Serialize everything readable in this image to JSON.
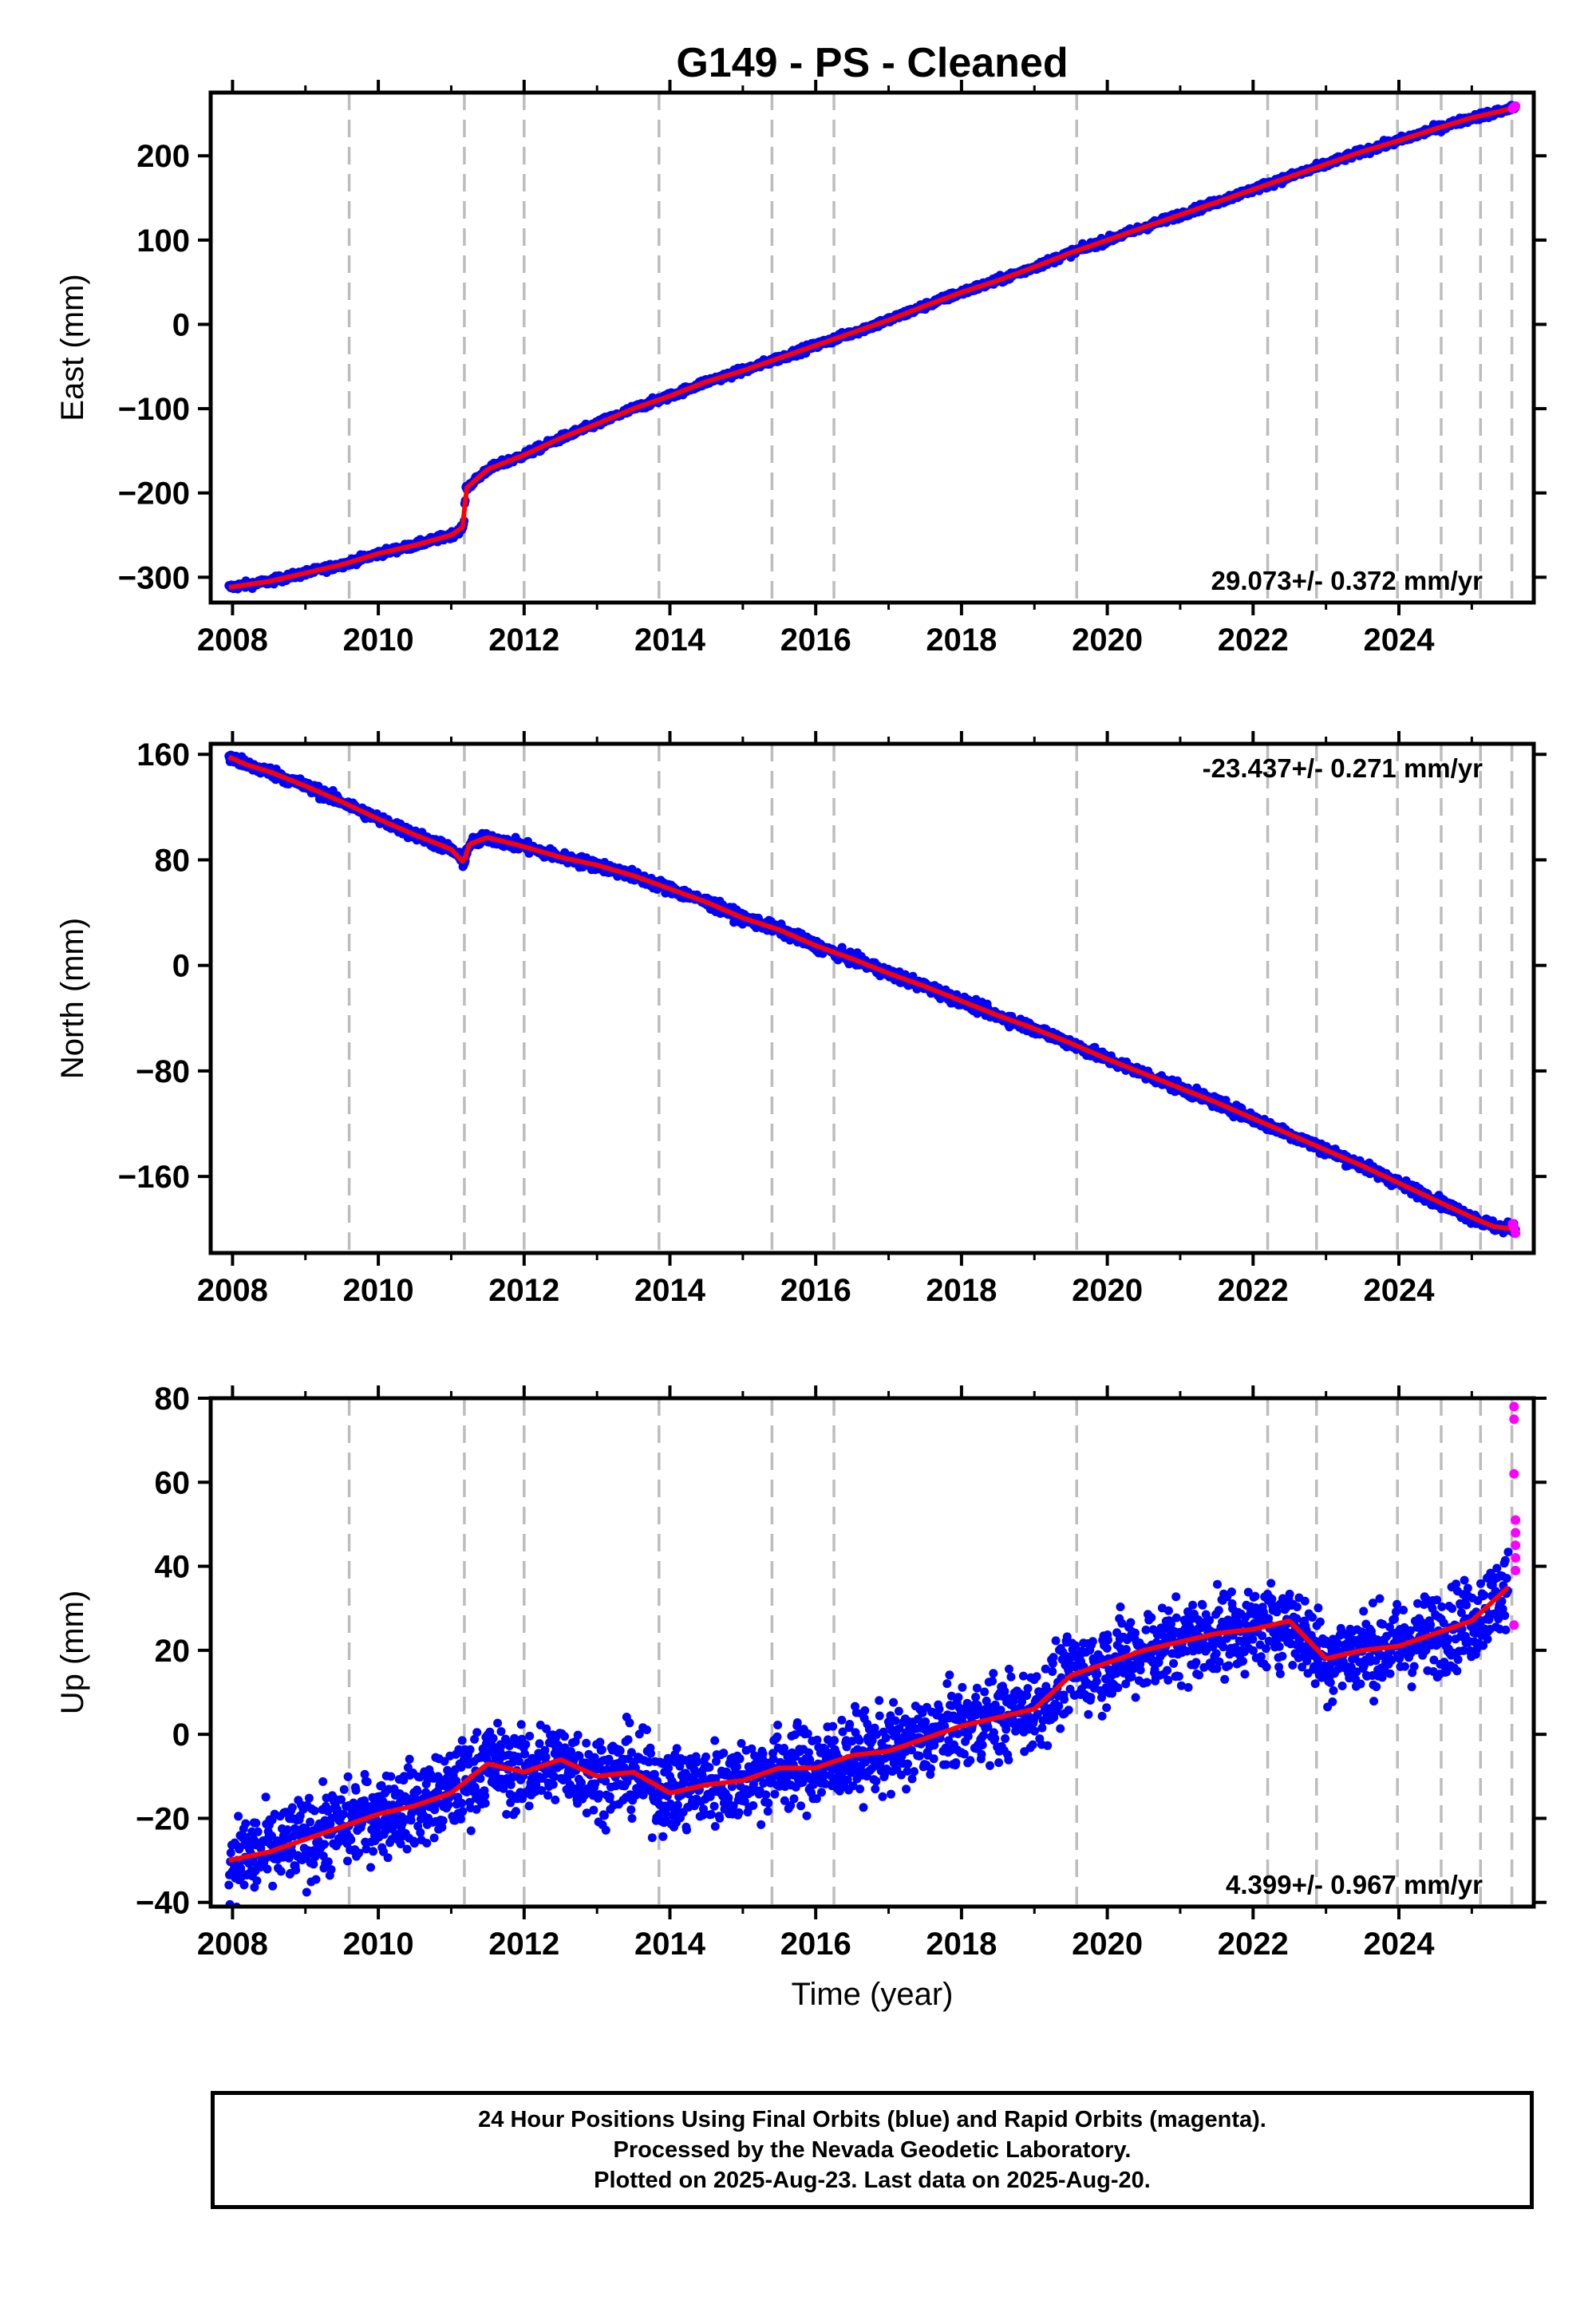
{
  "title": "G149  - PS - Cleaned",
  "colors": {
    "final_points": "#0000ff",
    "rapid_points": "#ff00ff",
    "model_line": "#ff0000",
    "event_lines": "#bdbdbd",
    "frame": "#000000"
  },
  "x_axis": {
    "label": "Time (year)",
    "range": [
      2007.7,
      2025.85
    ],
    "tick_labels": [
      "2008",
      "2010",
      "2012",
      "2014",
      "2016",
      "2018",
      "2020",
      "2022",
      "2024"
    ],
    "event_lines": [
      2009.6,
      2011.18,
      2012.0,
      2013.85,
      2015.4,
      2016.25,
      2019.58,
      2022.2,
      2022.87,
      2023.98,
      2024.58,
      2025.12,
      2025.55
    ]
  },
  "chart_data": [
    {
      "type": "scatter",
      "name": "east",
      "ylabel": "East (mm)",
      "ylim": [
        -330,
        275
      ],
      "yticks": [
        -300,
        -200,
        -100,
        0,
        100,
        200
      ],
      "y_tick_labels": [
        "−300",
        "−200",
        "−100",
        "0",
        "100",
        "200"
      ],
      "rate_label": "29.073+/- 0.372 mm/yr",
      "rate_position": "bottom-right",
      "grid": false,
      "series": [
        {
          "kind": "final_orbits_points_and_model",
          "x": [
            2007.95,
            2008.5,
            2009.0,
            2009.5,
            2010.0,
            2010.5,
            2011.0,
            2011.17,
            2011.2,
            2011.5,
            2012.0,
            2012.5,
            2013.0,
            2013.5,
            2014.0,
            2014.5,
            2015.0,
            2015.5,
            2016.0,
            2016.5,
            2017.0,
            2017.5,
            2018.0,
            2018.5,
            2019.0,
            2019.5,
            2020.0,
            2020.5,
            2021.0,
            2021.5,
            2022.0,
            2022.5,
            2023.0,
            2023.5,
            2024.0,
            2024.5,
            2025.0,
            2025.5,
            2025.6
          ],
          "y": [
            -312,
            -305,
            -295,
            -285,
            -272,
            -262,
            -250,
            -240,
            -195,
            -172,
            -155,
            -135,
            -118,
            -100,
            -85,
            -68,
            -55,
            -40,
            -25,
            -10,
            5,
            22,
            38,
            52,
            68,
            85,
            100,
            115,
            130,
            145,
            160,
            175,
            190,
            205,
            218,
            232,
            245,
            255,
            258
          ],
          "noise": 3
        }
      ],
      "rapid_points": [
        [
          2025.56,
          256
        ],
        [
          2025.58,
          258
        ],
        [
          2025.6,
          259
        ]
      ]
    },
    {
      "type": "scatter",
      "name": "north",
      "ylabel": "North (mm)",
      "ylim": [
        -218,
        168
      ],
      "yticks": [
        -160,
        -80,
        0,
        80,
        160
      ],
      "y_tick_labels": [
        "−160",
        "−80",
        "0",
        "80",
        "160"
      ],
      "rate_label": "-23.437+/- 0.271 mm/yr",
      "rate_position": "top-right",
      "grid": false,
      "series": [
        {
          "kind": "final_orbits_points_and_model",
          "x": [
            2007.95,
            2008.2,
            2008.5,
            2009.0,
            2009.5,
            2010.0,
            2010.5,
            2011.0,
            2011.17,
            2011.25,
            2011.5,
            2012.0,
            2012.5,
            2013.0,
            2013.5,
            2014.0,
            2014.5,
            2015.0,
            2015.5,
            2016.0,
            2016.5,
            2017.0,
            2017.5,
            2018.0,
            2018.5,
            2019.0,
            2019.5,
            2020.0,
            2020.5,
            2021.0,
            2021.5,
            2022.0,
            2022.5,
            2023.0,
            2023.5,
            2024.0,
            2024.5,
            2025.0,
            2025.3,
            2025.6
          ],
          "y": [
            158,
            152,
            147,
            136,
            124,
            111,
            99,
            88,
            78,
            92,
            97,
            90,
            82,
            76,
            68,
            58,
            48,
            36,
            27,
            15,
            5,
            -6,
            -16,
            -27,
            -38,
            -48,
            -59,
            -71,
            -82,
            -93,
            -104,
            -116,
            -128,
            -140,
            -152,
            -165,
            -178,
            -191,
            -198,
            -200
          ],
          "noise": 3
        }
      ],
      "rapid_points": [
        [
          2025.56,
          -196
        ],
        [
          2025.58,
          -199
        ],
        [
          2025.6,
          -203
        ]
      ]
    },
    {
      "type": "scatter",
      "name": "up",
      "ylabel": "Up (mm)",
      "ylim": [
        -41,
        80
      ],
      "yticks": [
        -40,
        -20,
        0,
        20,
        40,
        60,
        80
      ],
      "y_tick_labels": [
        "−40",
        "−20",
        "0",
        "20",
        "40",
        "60",
        "80"
      ],
      "rate_label": "4.399+/- 0.967 mm/yr",
      "rate_position": "bottom-right",
      "grid": false,
      "series": [
        {
          "kind": "final_orbits_points_and_model",
          "x": [
            2007.95,
            2008.5,
            2009.0,
            2009.5,
            2010.0,
            2010.5,
            2011.0,
            2011.5,
            2012.0,
            2012.5,
            2013.0,
            2013.5,
            2014.0,
            2014.5,
            2015.0,
            2015.5,
            2016.0,
            2016.5,
            2017.0,
            2017.5,
            2018.0,
            2018.5,
            2019.0,
            2019.5,
            2020.0,
            2020.5,
            2021.0,
            2021.5,
            2022.0,
            2022.5,
            2023.0,
            2023.5,
            2024.0,
            2024.5,
            2025.0,
            2025.5
          ],
          "y": [
            -30,
            -28,
            -25,
            -22,
            -19,
            -17,
            -14,
            -7,
            -9,
            -6,
            -10,
            -9,
            -14,
            -12,
            -11,
            -8,
            -8,
            -5,
            -4,
            -1,
            2,
            4,
            6,
            14,
            17,
            20,
            22,
            24,
            25,
            27,
            18,
            20,
            21,
            24,
            27,
            35
          ],
          "noise": 7
        }
      ],
      "rapid_points": [
        [
          2025.58,
          78
        ],
        [
          2025.58,
          75
        ],
        [
          2025.58,
          62
        ],
        [
          2025.6,
          51
        ],
        [
          2025.6,
          48
        ],
        [
          2025.6,
          45
        ],
        [
          2025.6,
          42
        ],
        [
          2025.6,
          39
        ],
        [
          2025.58,
          26
        ]
      ]
    }
  ],
  "footer": {
    "line1": "24 Hour Positions Using Final Orbits (blue) and Rapid Orbits (magenta).",
    "line2": "Processed by the Nevada Geodetic Laboratory.",
    "line3": "Plotted on 2025-Aug-23. Last data on 2025-Aug-20."
  }
}
